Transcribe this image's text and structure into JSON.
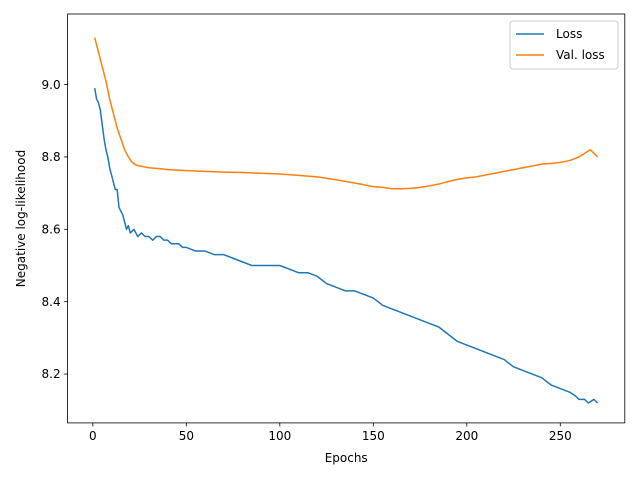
{
  "chart_data": {
    "type": "line",
    "title": "",
    "xlabel": "Epochs",
    "ylabel": "Negative log-likelihood",
    "xlim": [
      -13.5,
      284.5
    ],
    "ylim": [
      8.065,
      9.195
    ],
    "xticks": [
      0,
      50,
      100,
      150,
      200,
      250
    ],
    "yticks": [
      8.2,
      8.4,
      8.6,
      8.8,
      9.0
    ],
    "xtick_labels": [
      "0",
      "50",
      "100",
      "150",
      "200",
      "250"
    ],
    "ytick_labels": [
      "8.2",
      "8.4",
      "8.6",
      "8.8",
      "9.0"
    ],
    "grid": false,
    "legend_position": "top-right",
    "series": [
      {
        "name": "Loss",
        "color": "#1f77b4",
        "x": [
          1,
          2,
          3,
          4,
          5,
          6,
          7,
          8,
          9,
          10,
          11,
          12,
          13,
          14,
          15,
          16,
          17,
          18,
          19,
          20,
          22,
          24,
          26,
          28,
          30,
          32,
          34,
          36,
          38,
          40,
          42,
          44,
          46,
          48,
          50,
          55,
          60,
          65,
          70,
          75,
          80,
          85,
          90,
          95,
          100,
          105,
          110,
          115,
          120,
          125,
          130,
          135,
          140,
          145,
          150,
          155,
          160,
          165,
          170,
          175,
          180,
          185,
          190,
          195,
          200,
          205,
          210,
          215,
          220,
          225,
          230,
          235,
          240,
          245,
          250,
          255,
          258,
          260,
          263,
          265,
          268,
          270
        ],
        "y": [
          8.99,
          8.96,
          8.95,
          8.93,
          8.89,
          8.85,
          8.82,
          8.8,
          8.77,
          8.75,
          8.73,
          8.71,
          8.71,
          8.66,
          8.65,
          8.64,
          8.62,
          8.6,
          8.61,
          8.59,
          8.6,
          8.58,
          8.59,
          8.58,
          8.58,
          8.57,
          8.58,
          8.58,
          8.57,
          8.57,
          8.56,
          8.56,
          8.56,
          8.55,
          8.55,
          8.54,
          8.54,
          8.53,
          8.53,
          8.52,
          8.51,
          8.5,
          8.5,
          8.5,
          8.5,
          8.49,
          8.48,
          8.48,
          8.47,
          8.45,
          8.44,
          8.43,
          8.43,
          8.42,
          8.41,
          8.39,
          8.38,
          8.37,
          8.36,
          8.35,
          8.34,
          8.33,
          8.31,
          8.29,
          8.28,
          8.27,
          8.26,
          8.25,
          8.24,
          8.22,
          8.21,
          8.2,
          8.19,
          8.17,
          8.16,
          8.15,
          8.14,
          8.13,
          8.13,
          8.12,
          8.13,
          8.12
        ]
      },
      {
        "name": "Val. loss",
        "color": "#ff7f0e",
        "x": [
          1,
          3,
          5,
          7,
          9,
          11,
          13,
          15,
          17,
          19,
          21,
          23,
          25,
          30,
          35,
          40,
          50,
          60,
          70,
          80,
          90,
          100,
          110,
          120,
          130,
          140,
          150,
          155,
          160,
          165,
          170,
          175,
          180,
          185,
          190,
          195,
          200,
          205,
          210,
          215,
          220,
          225,
          230,
          235,
          240,
          245,
          250,
          255,
          260,
          263,
          266,
          268,
          270
        ],
        "y": [
          9.13,
          9.09,
          9.05,
          9.01,
          8.96,
          8.92,
          8.88,
          8.85,
          8.82,
          8.8,
          8.785,
          8.778,
          8.775,
          8.77,
          8.768,
          8.765,
          8.762,
          8.76,
          8.758,
          8.757,
          8.755,
          8.753,
          8.749,
          8.745,
          8.737,
          8.728,
          8.718,
          8.716,
          8.712,
          8.712,
          8.713,
          8.716,
          8.72,
          8.725,
          8.732,
          8.738,
          8.742,
          8.745,
          8.75,
          8.755,
          8.76,
          8.765,
          8.77,
          8.775,
          8.78,
          8.782,
          8.785,
          8.79,
          8.8,
          8.81,
          8.82,
          8.81,
          8.8
        ]
      }
    ]
  }
}
